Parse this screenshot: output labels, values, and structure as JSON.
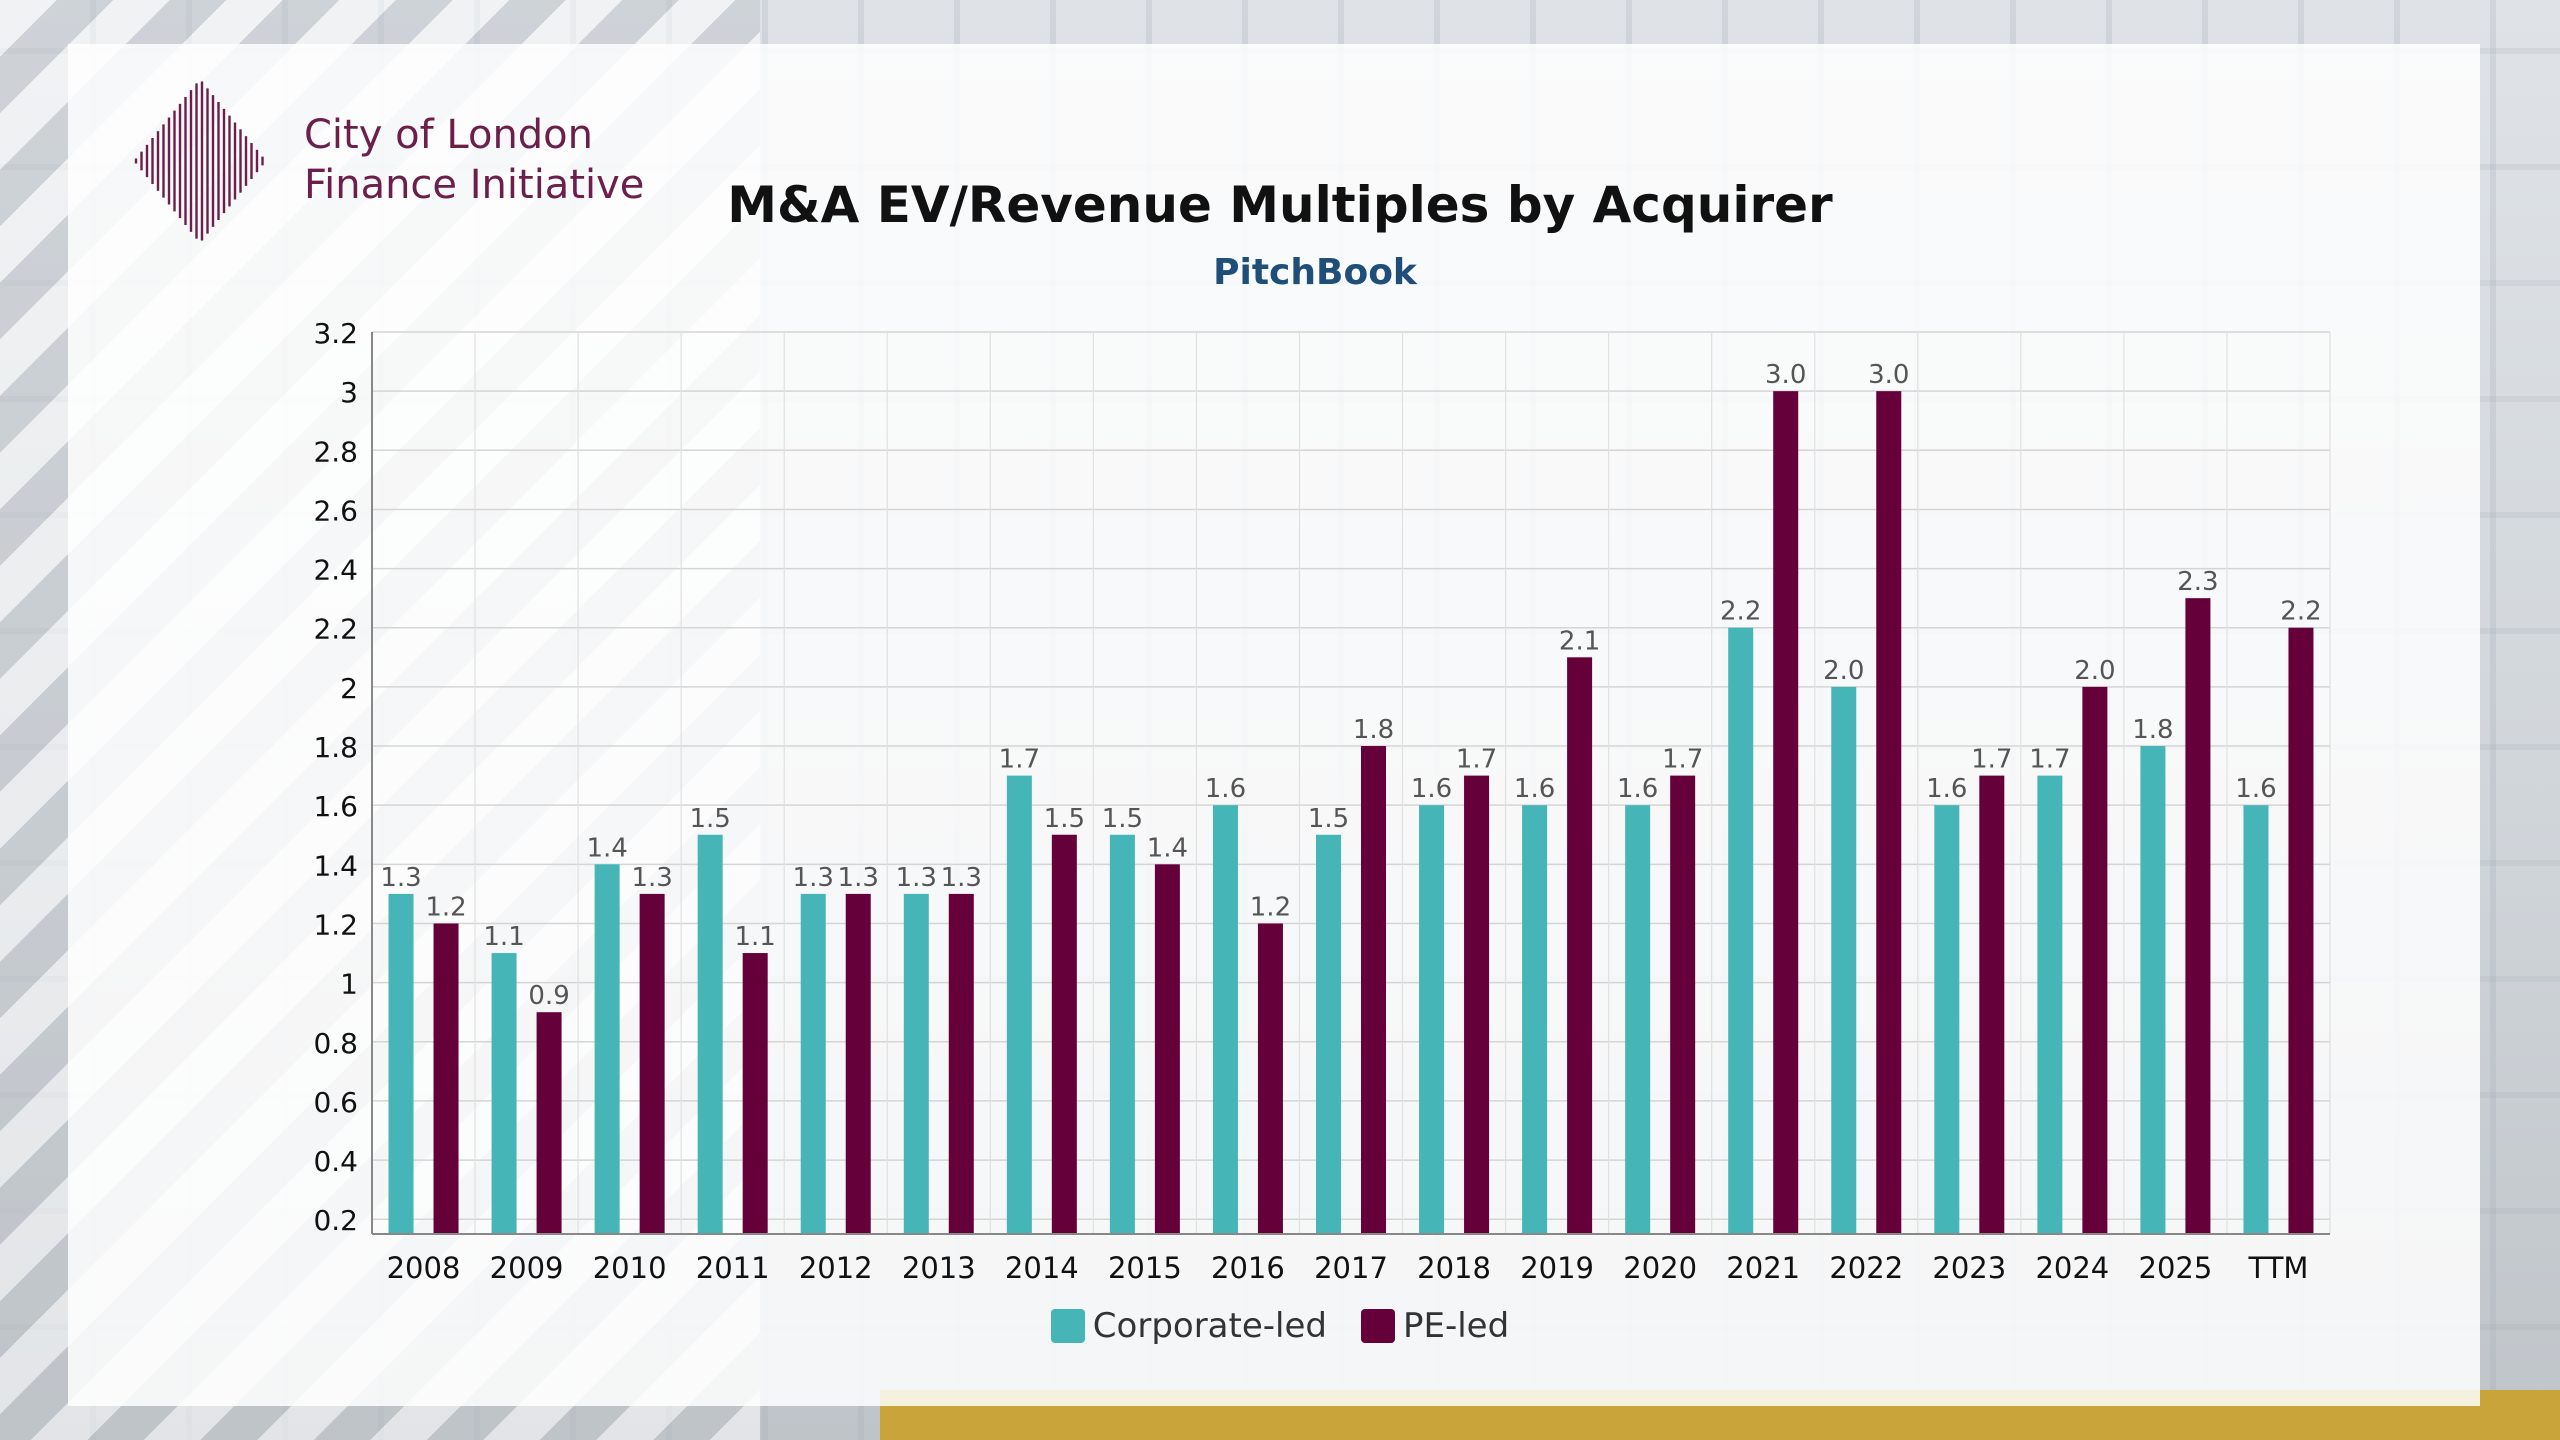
{
  "organization": {
    "name_line1": "City of London",
    "name_line2": "Finance Initiative",
    "brand_color": "#6b1f4a",
    "logo_icon": "striped-diamond-logo-icon"
  },
  "chart_data": {
    "type": "bar",
    "title": "M&A EV/Revenue Multiples by Acquirer",
    "subtitle": "PitchBook",
    "xlabel": "",
    "ylabel": "",
    "categories": [
      "2008",
      "2009",
      "2010",
      "2011",
      "2012",
      "2013",
      "2014",
      "2015",
      "2016",
      "2017",
      "2018",
      "2019",
      "2020",
      "2021",
      "2022",
      "2023",
      "2024",
      "2025",
      "TTM"
    ],
    "series": [
      {
        "name": "Corporate-led",
        "color": "#45b5b8",
        "values": [
          1.3,
          1.1,
          1.4,
          1.5,
          1.3,
          1.3,
          1.7,
          1.5,
          1.6,
          1.5,
          1.6,
          1.6,
          1.6,
          2.2,
          2.0,
          1.6,
          1.7,
          1.8,
          1.6
        ],
        "labels": [
          "1.3",
          "1.1",
          "1.4",
          "1.5",
          "1.3",
          "1.3",
          "1.7",
          "1.5",
          "1.6",
          "1.5",
          "1.6",
          "1.6",
          "1.6",
          "2.2",
          "2.0",
          "1.6",
          "1.7",
          "1.8",
          "1.6"
        ]
      },
      {
        "name": "PE-led",
        "color": "#66003a",
        "values": [
          1.2,
          0.9,
          1.3,
          1.1,
          1.3,
          1.3,
          1.5,
          1.4,
          1.2,
          1.8,
          1.7,
          2.1,
          1.7,
          3.0,
          3.0,
          1.7,
          2.0,
          2.3,
          2.2
        ],
        "labels": [
          "1.2",
          "0.9",
          "1.3",
          "1.1",
          "1.3",
          "1.3",
          "1.5",
          "1.4",
          "1.2",
          "1.8",
          "1.7",
          "2.1",
          "1.7",
          "3.0",
          "3.0",
          "1.7",
          "2.0",
          "2.3",
          "2.2"
        ]
      }
    ],
    "yticks": [
      "0.2",
      "0.4",
      "0.6",
      "0.8",
      "1",
      "1.2",
      "1.4",
      "1.6",
      "1.8",
      "2",
      "2.2",
      "2.4",
      "2.6",
      "2.8",
      "3",
      "3.2"
    ],
    "ylim": [
      0.15,
      3.2
    ],
    "grid": true,
    "legend_position": "bottom-center"
  }
}
